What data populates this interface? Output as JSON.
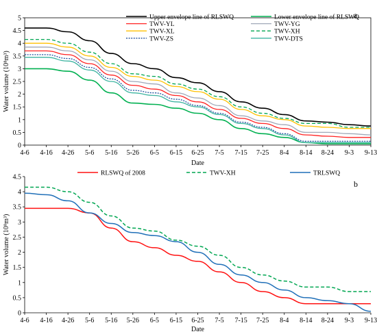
{
  "chart_data": [
    {
      "type": "line",
      "panel_label": "a",
      "xlabel": "Date",
      "ylabel": "Water volume (10⁸m³)",
      "ylim": [
        0,
        5
      ],
      "yticks": [
        "0",
        "0.5",
        "1",
        "1.5",
        "2",
        "2.5",
        "3",
        "3.5",
        "4",
        "4.5",
        "5"
      ],
      "categories": [
        "4-6",
        "4-16",
        "4-26",
        "5-6",
        "5-16",
        "5-26",
        "6-5",
        "6-15",
        "6-25",
        "7-5",
        "7-15",
        "7-25",
        "8-4",
        "8-14",
        "8-24",
        "9-3",
        "9-13"
      ],
      "grid": false,
      "legend_position": "top",
      "series": [
        {
          "name": "Upper envelope line of RLSWQ",
          "color": "#000000",
          "dash": "solid",
          "width": 1.6,
          "values": [
            4.6,
            4.6,
            4.45,
            4.1,
            3.6,
            3.2,
            3.0,
            2.65,
            2.45,
            2.1,
            1.7,
            1.45,
            1.2,
            0.95,
            0.9,
            0.8,
            0.75
          ]
        },
        {
          "name": "Lower envelope line of RLSWQ",
          "color": "#00b050",
          "dash": "solid",
          "width": 1.6,
          "values": [
            3.0,
            3.0,
            2.9,
            2.55,
            2.05,
            1.65,
            1.6,
            1.45,
            1.25,
            1.0,
            0.65,
            0.45,
            0.3,
            0.1,
            0.05,
            0.05,
            0.05
          ]
        },
        {
          "name": "TWV-YL",
          "color": "#ff2020",
          "dash": "solid",
          "width": 1.3,
          "values": [
            3.7,
            3.7,
            3.55,
            3.2,
            2.75,
            2.35,
            2.2,
            1.95,
            1.7,
            1.4,
            1.05,
            0.85,
            0.65,
            0.4,
            0.35,
            0.3,
            0.3
          ]
        },
        {
          "name": "TWV-YG",
          "color": "#a0a8b8",
          "dash": "solid",
          "width": 1.3,
          "values": [
            3.85,
            3.85,
            3.7,
            3.35,
            2.9,
            2.5,
            2.4,
            2.05,
            1.85,
            1.55,
            1.15,
            0.95,
            0.8,
            0.5,
            0.5,
            0.45,
            0.4
          ]
        },
        {
          "name": "TWV-XL",
          "color": "#ffc000",
          "dash": "solid",
          "width": 1.3,
          "values": [
            4.0,
            4.0,
            3.85,
            3.5,
            3.05,
            2.7,
            2.55,
            2.3,
            2.1,
            1.8,
            1.4,
            1.15,
            1.0,
            0.75,
            0.7,
            0.65,
            0.65
          ]
        },
        {
          "name": "TWV-XH",
          "color": "#00a651",
          "dash": "dashed",
          "width": 1.3,
          "values": [
            4.15,
            4.15,
            4.0,
            3.65,
            3.2,
            2.8,
            2.7,
            2.4,
            2.2,
            1.9,
            1.5,
            1.25,
            1.05,
            0.85,
            0.85,
            0.7,
            0.7
          ]
        },
        {
          "name": "TWV-ZS",
          "color": "#1f4e9c",
          "dash": "dotted",
          "width": 1.3,
          "values": [
            3.55,
            3.55,
            3.4,
            3.05,
            2.6,
            2.15,
            2.05,
            1.8,
            1.55,
            1.25,
            0.9,
            0.7,
            0.45,
            0.15,
            0.15,
            0.15,
            0.15
          ]
        },
        {
          "name": "TWV-DTS",
          "color": "#3cb4a0",
          "dash": "solid",
          "width": 1.3,
          "values": [
            3.45,
            3.45,
            3.3,
            2.95,
            2.5,
            2.05,
            1.95,
            1.7,
            1.5,
            1.2,
            0.85,
            0.65,
            0.4,
            0.1,
            0.1,
            0.1,
            0.1
          ]
        }
      ]
    },
    {
      "type": "line",
      "panel_label": "b",
      "xlabel": "Date",
      "ylabel": "Water volume (10⁸m³)",
      "ylim": [
        0,
        4.5
      ],
      "yticks": [
        "0",
        "0.5",
        "1",
        "1.5",
        "2",
        "2.5",
        "3",
        "3.5",
        "4",
        "4.5"
      ],
      "categories": [
        "4-6",
        "4-16",
        "4-26",
        "5-6",
        "5-16",
        "5-26",
        "6-5",
        "6-15",
        "6-25",
        "7-5",
        "7-15",
        "7-25",
        "8-4",
        "8-14",
        "8-24",
        "9-3",
        "9-13"
      ],
      "grid": false,
      "legend_position": "top",
      "series": [
        {
          "name": "RLSWQ of 2008",
          "color": "#ff1010",
          "dash": "solid",
          "width": 1.5,
          "values": [
            3.45,
            3.45,
            3.45,
            3.3,
            2.8,
            2.35,
            2.15,
            1.9,
            1.7,
            1.35,
            1.0,
            0.7,
            0.5,
            0.3,
            0.3,
            0.3,
            0.3
          ]
        },
        {
          "name": "TWV-XH",
          "color": "#00a651",
          "dash": "dashed",
          "width": 1.5,
          "values": [
            4.15,
            4.15,
            4.0,
            3.65,
            3.2,
            2.8,
            2.7,
            2.4,
            2.2,
            1.9,
            1.5,
            1.25,
            1.05,
            0.85,
            0.85,
            0.7,
            0.7
          ]
        },
        {
          "name": "TRLSWQ",
          "color": "#1f6fb8",
          "dash": "solid",
          "width": 1.5,
          "values": [
            3.95,
            3.9,
            3.7,
            3.3,
            2.95,
            2.65,
            2.55,
            2.35,
            2.0,
            1.6,
            1.25,
            1.0,
            0.75,
            0.5,
            0.4,
            0.3,
            0.05
          ]
        }
      ]
    }
  ]
}
